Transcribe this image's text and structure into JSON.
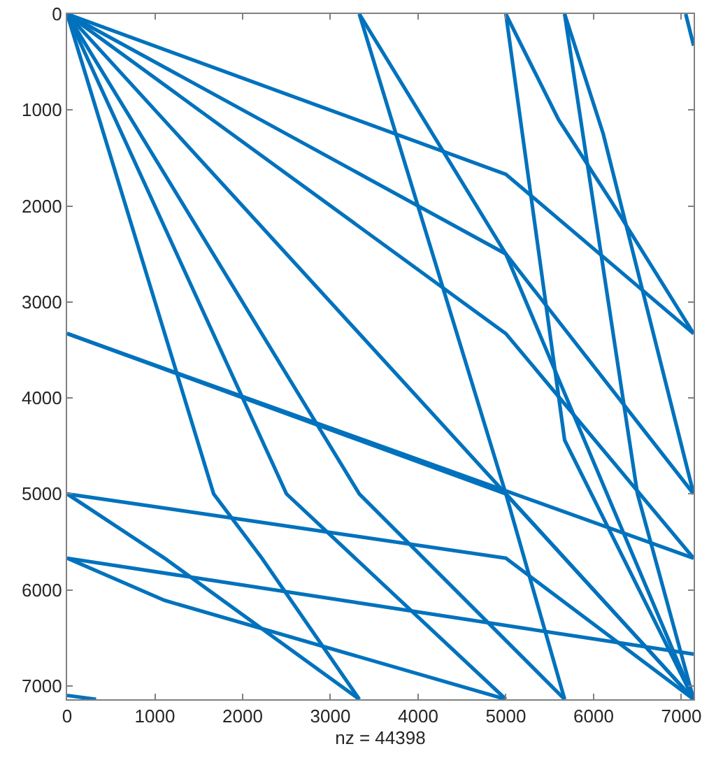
{
  "chart_data": {
    "type": "line",
    "xlabel": "nz = 44398",
    "xlim": [
      0,
      7140
    ],
    "ylim": [
      7140,
      0
    ],
    "xticks": [
      0,
      1000,
      2000,
      3000,
      4000,
      5000,
      6000,
      7000
    ],
    "yticks": [
      0,
      1000,
      2000,
      3000,
      4000,
      5000,
      6000,
      7000
    ],
    "grid": false,
    "marker": "none",
    "line_style": "solid",
    "series": [
      {
        "color": "#0072bd",
        "x": [
          0,
          5000,
          7140
        ],
        "values": [
          0,
          1670,
          3330
        ]
      },
      {
        "color": "#0072bd",
        "x": [
          0,
          5000,
          7140
        ],
        "values": [
          0,
          2500,
          5000
        ]
      },
      {
        "color": "#0072bd",
        "x": [
          0,
          5000,
          7140
        ],
        "values": [
          0,
          3330,
          5670
        ]
      },
      {
        "color": "#0072bd",
        "x": [
          0,
          7140
        ],
        "values": [
          0,
          7140
        ]
      },
      {
        "color": "#0072bd",
        "x": [
          0,
          1670,
          2220,
          3330
        ],
        "values": [
          0,
          5000,
          5670,
          7140
        ]
      },
      {
        "color": "#0072bd",
        "x": [
          0,
          2500,
          5000
        ],
        "values": [
          0,
          5000,
          7140
        ]
      },
      {
        "color": "#0072bd",
        "x": [
          0,
          3330,
          5670
        ],
        "values": [
          0,
          5000,
          7140
        ]
      },
      {
        "color": "#0072bd",
        "x": [
          3330,
          5000,
          7140
        ],
        "values": [
          0,
          2500,
          7140
        ]
      },
      {
        "color": "#0072bd",
        "x": [
          3330,
          5000,
          5670
        ],
        "values": [
          0,
          5000,
          7140
        ]
      },
      {
        "color": "#0072bd",
        "x": [
          5000,
          5600,
          6200,
          7140
        ],
        "values": [
          0,
          1100,
          1950,
          3330
        ]
      },
      {
        "color": "#0072bd",
        "x": [
          5000,
          5670,
          7140
        ],
        "values": [
          0,
          4440,
          7140
        ]
      },
      {
        "color": "#0072bd",
        "x": [
          5670,
          6110,
          7140
        ],
        "values": [
          0,
          1250,
          5000
        ]
      },
      {
        "color": "#0072bd",
        "x": [
          5670,
          6500,
          7140
        ],
        "values": [
          0,
          5000,
          7140
        ]
      },
      {
        "color": "#0072bd",
        "x": [
          0,
          7140
        ],
        "values": [
          3330,
          5670
        ]
      },
      {
        "color": "#0072bd",
        "x": [
          0,
          5000,
          7140
        ],
        "values": [
          3330,
          5000,
          7140
        ]
      },
      {
        "color": "#0072bd",
        "x": [
          0,
          1110,
          3330
        ],
        "values": [
          5000,
          5670,
          7140
        ]
      },
      {
        "color": "#0072bd",
        "x": [
          0,
          5000,
          7140
        ],
        "values": [
          5000,
          5670,
          7140
        ]
      },
      {
        "color": "#0072bd",
        "x": [
          0,
          7140
        ],
        "values": [
          5670,
          6670
        ]
      },
      {
        "color": "#0072bd",
        "x": [
          0,
          1110,
          5000
        ],
        "values": [
          5670,
          6110,
          7140
        ]
      },
      {
        "color": "#0072bd",
        "x": [
          0,
          330
        ],
        "values": [
          7100,
          7140
        ]
      },
      {
        "color": "#0072bd",
        "x": [
          7050,
          7140
        ],
        "values": [
          0,
          330
        ]
      }
    ]
  }
}
